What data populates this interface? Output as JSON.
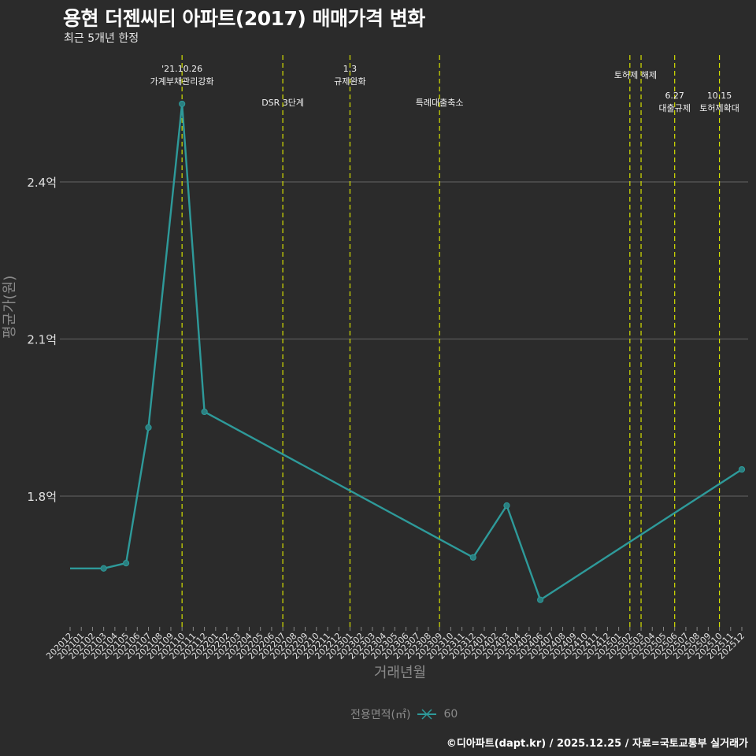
{
  "header": {
    "title": "용현 더젠씨티 아파트(2017) 매매가격 변화",
    "subtitle": "최근 5개년 한정"
  },
  "axes": {
    "xlabel": "거래년월",
    "ylabel": "평균가(원)"
  },
  "legend": {
    "title": "전용면적(㎡)",
    "entries": [
      {
        "label": "60",
        "color": "#2e9a9a"
      }
    ]
  },
  "caption": "©디아파트(dapt.kr) / 2025.12.25 / 자료=국토교통부 실거래가",
  "colors": {
    "background": "#2b2b2b",
    "line": "#2e9a9a",
    "event_line": "#d4e000",
    "grid": "#5a5a5a"
  },
  "chart_data": {
    "type": "line",
    "title": "용현 더젠씨티 아파트(2017) 매매가격 변화",
    "subtitle": "최근 5개년 한정",
    "xlabel": "거래년월",
    "ylabel": "평균가(원)",
    "x_ticks": [
      "202012",
      "202101",
      "202102",
      "202103",
      "202104",
      "202105",
      "202106",
      "202107",
      "202108",
      "202109",
      "202110",
      "202111",
      "202112",
      "202201",
      "202202",
      "202203",
      "202204",
      "202205",
      "202206",
      "202207",
      "202208",
      "202209",
      "202210",
      "202211",
      "202212",
      "202301",
      "202302",
      "202303",
      "202304",
      "202305",
      "202306",
      "202307",
      "202308",
      "202309",
      "202310",
      "202311",
      "202312",
      "202401",
      "202402",
      "202403",
      "202404",
      "202405",
      "202406",
      "202407",
      "202408",
      "202409",
      "202410",
      "202411",
      "202412",
      "202501",
      "202502",
      "202503",
      "202504",
      "202505",
      "202506",
      "202507",
      "202508",
      "202509",
      "202510",
      "202511",
      "202512"
    ],
    "y_ticks": [
      {
        "value": 1.8,
        "label": "1.8억"
      },
      {
        "value": 2.1,
        "label": "2.1억"
      },
      {
        "value": 2.4,
        "label": "2.4억"
      }
    ],
    "ylim": [
      1.48,
      2.97
    ],
    "grid": true,
    "legend_position": "bottom",
    "series": [
      {
        "name": "60",
        "unit": "억",
        "points": [
          {
            "x": "202012",
            "y": 1.662,
            "marker": false
          },
          {
            "x": "202103",
            "y": 1.662,
            "marker": true
          },
          {
            "x": "202105",
            "y": 1.672,
            "marker": true
          },
          {
            "x": "202107",
            "y": 1.931,
            "marker": true
          },
          {
            "x": "202110",
            "y": 2.549,
            "marker": true
          },
          {
            "x": "202112",
            "y": 1.961,
            "marker": true
          },
          {
            "x": "202312",
            "y": 1.683,
            "marker": true
          },
          {
            "x": "202403",
            "y": 1.782,
            "marker": true
          },
          {
            "x": "202406",
            "y": 1.602,
            "marker": true
          },
          {
            "x": "202512",
            "y": 1.851,
            "marker": true
          }
        ]
      }
    ],
    "annotations": [
      {
        "x": "202110",
        "lines": [
          "'21.10.26",
          "가계부채관리강화"
        ],
        "row": 0
      },
      {
        "x": "202207",
        "lines": [
          "DSR 3단계"
        ],
        "row": 2
      },
      {
        "x": "202301",
        "lines": [
          "1.3",
          "규제완화"
        ],
        "row": 0
      },
      {
        "x": "202309",
        "lines": [
          "특례대출축소"
        ],
        "row": 2
      },
      {
        "x": "202502",
        "lines": [],
        "row": 0
      },
      {
        "x": "202503",
        "lines": [
          "토허제 해제"
        ],
        "row": 1,
        "label_x": "202502.5"
      },
      {
        "x": "202506",
        "lines": [
          "6.27",
          "대출규제"
        ],
        "row": 3
      },
      {
        "x": "202510",
        "lines": [
          "10.15",
          "토허제확대"
        ],
        "row": 3
      }
    ]
  }
}
